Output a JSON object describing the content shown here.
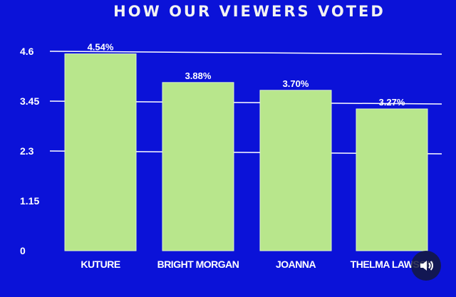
{
  "chart_data": {
    "type": "bar",
    "title": "HOW OUR VIEWERS VOTED",
    "categories": [
      "KUTURE",
      "BRIGHT MORGAN",
      "JOANNA",
      "THELMA LAWSON"
    ],
    "values": [
      4.54,
      3.88,
      3.7,
      3.27
    ],
    "data_labels": [
      "4.54%",
      "3.88%",
      "3.70%",
      "3.27%"
    ],
    "yticks": [
      0,
      1.15,
      2.3,
      3.45,
      4.6
    ],
    "ytick_labels": [
      "0",
      "1.15",
      "2.3",
      "3.45",
      "4.6"
    ],
    "gridlines": [
      2.3,
      3.45,
      4.6
    ],
    "ylim": [
      0,
      4.6
    ],
    "xlabel": "",
    "ylabel": "",
    "colors": {
      "background": "#0b12d8",
      "bar": "#b8e68c",
      "grid": "#ffffff"
    }
  },
  "controls": {
    "sound_icon": "speaker-icon"
  }
}
